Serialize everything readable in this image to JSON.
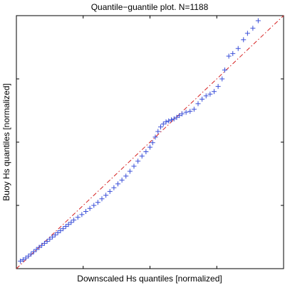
{
  "chart_data": {
    "type": "scatter",
    "title": "Quantile−guantile plot. N=1188",
    "xlabel": "Downscaled Hs quantiles [normalized]",
    "ylabel": "Buoy Hs quantiles [normalized]",
    "xlim": [
      0,
      10
    ],
    "ylim": [
      0,
      10
    ],
    "grid": false,
    "tick_labels_visible": false,
    "marker": "+",
    "colors": {
      "points": "#3a4fd8",
      "reference_line": "#d62020",
      "frame": "#000000"
    },
    "reference_line": {
      "style": "dash-dot",
      "x": [
        0,
        10
      ],
      "y": [
        0,
        10
      ]
    },
    "series": [
      {
        "x": [
          0.15,
          0.25,
          0.35,
          0.45,
          0.55,
          0.65,
          0.75,
          0.85,
          0.95,
          1.05,
          1.15,
          1.25,
          1.35,
          1.45,
          1.55,
          1.65,
          1.75,
          1.85,
          1.95,
          2.05,
          2.15,
          2.3,
          2.45,
          2.6,
          2.75,
          2.9,
          3.05,
          3.2,
          3.35,
          3.5,
          3.65,
          3.8,
          3.95,
          4.1,
          4.25,
          4.4,
          4.55,
          4.7,
          4.85,
          5.0,
          5.1,
          5.2,
          5.3,
          5.4,
          5.5,
          5.6,
          5.7,
          5.8,
          5.9,
          6.0,
          6.1,
          6.2,
          6.35,
          6.5,
          6.65,
          6.8,
          6.95,
          7.1,
          7.25,
          7.4,
          7.55,
          7.7,
          7.8,
          7.95,
          8.1,
          8.3,
          8.5,
          8.65,
          8.85,
          9.05
        ],
        "y": [
          0.3,
          0.35,
          0.42,
          0.5,
          0.58,
          0.67,
          0.76,
          0.84,
          0.92,
          1.0,
          1.08,
          1.17,
          1.25,
          1.33,
          1.42,
          1.5,
          1.58,
          1.67,
          1.75,
          1.83,
          1.92,
          2.03,
          2.14,
          2.26,
          2.38,
          2.5,
          2.62,
          2.76,
          2.9,
          3.05,
          3.2,
          3.35,
          3.5,
          3.66,
          3.85,
          4.05,
          4.25,
          4.45,
          4.62,
          4.8,
          4.98,
          5.2,
          5.42,
          5.6,
          5.72,
          5.8,
          5.84,
          5.88,
          5.92,
          5.98,
          6.05,
          6.12,
          6.18,
          6.22,
          6.3,
          6.52,
          6.7,
          6.83,
          6.9,
          7.0,
          7.2,
          7.5,
          7.85,
          8.4,
          8.5,
          8.7,
          9.05,
          9.3,
          9.5,
          9.8
        ]
      }
    ]
  }
}
